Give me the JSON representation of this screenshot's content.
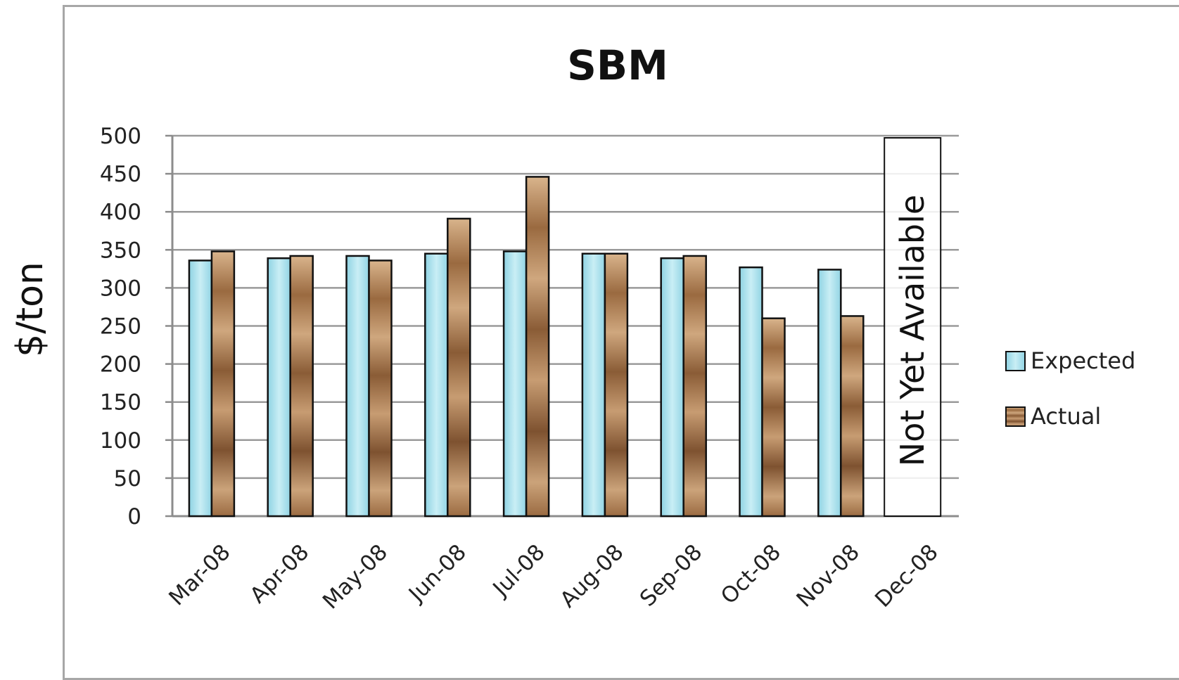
{
  "page": {
    "ylabel": "$/ton"
  },
  "chart_data": {
    "type": "bar",
    "title": "SBM",
    "xlabel": "",
    "ylabel": "$/ton",
    "ylim": [
      0,
      500
    ],
    "yticks": [
      0,
      50,
      100,
      150,
      200,
      250,
      300,
      350,
      400,
      450,
      500
    ],
    "grid": true,
    "legend_position": "right",
    "categories": [
      "Mar-08",
      "Apr-08",
      "May-08",
      "Jun-08",
      "Jul-08",
      "Aug-08",
      "Sep-08",
      "Oct-08",
      "Nov-08",
      "Dec-08"
    ],
    "series": [
      {
        "name": "Expected",
        "color": "#a9dfe9",
        "values": [
          336,
          339,
          342,
          345,
          348,
          345,
          339,
          327,
          324,
          null
        ]
      },
      {
        "name": "Actual",
        "color": "#b88a5e",
        "values": [
          348,
          342,
          336,
          391,
          446,
          345,
          342,
          260,
          263,
          null
        ]
      }
    ],
    "annotation": "Not Yet Available"
  }
}
